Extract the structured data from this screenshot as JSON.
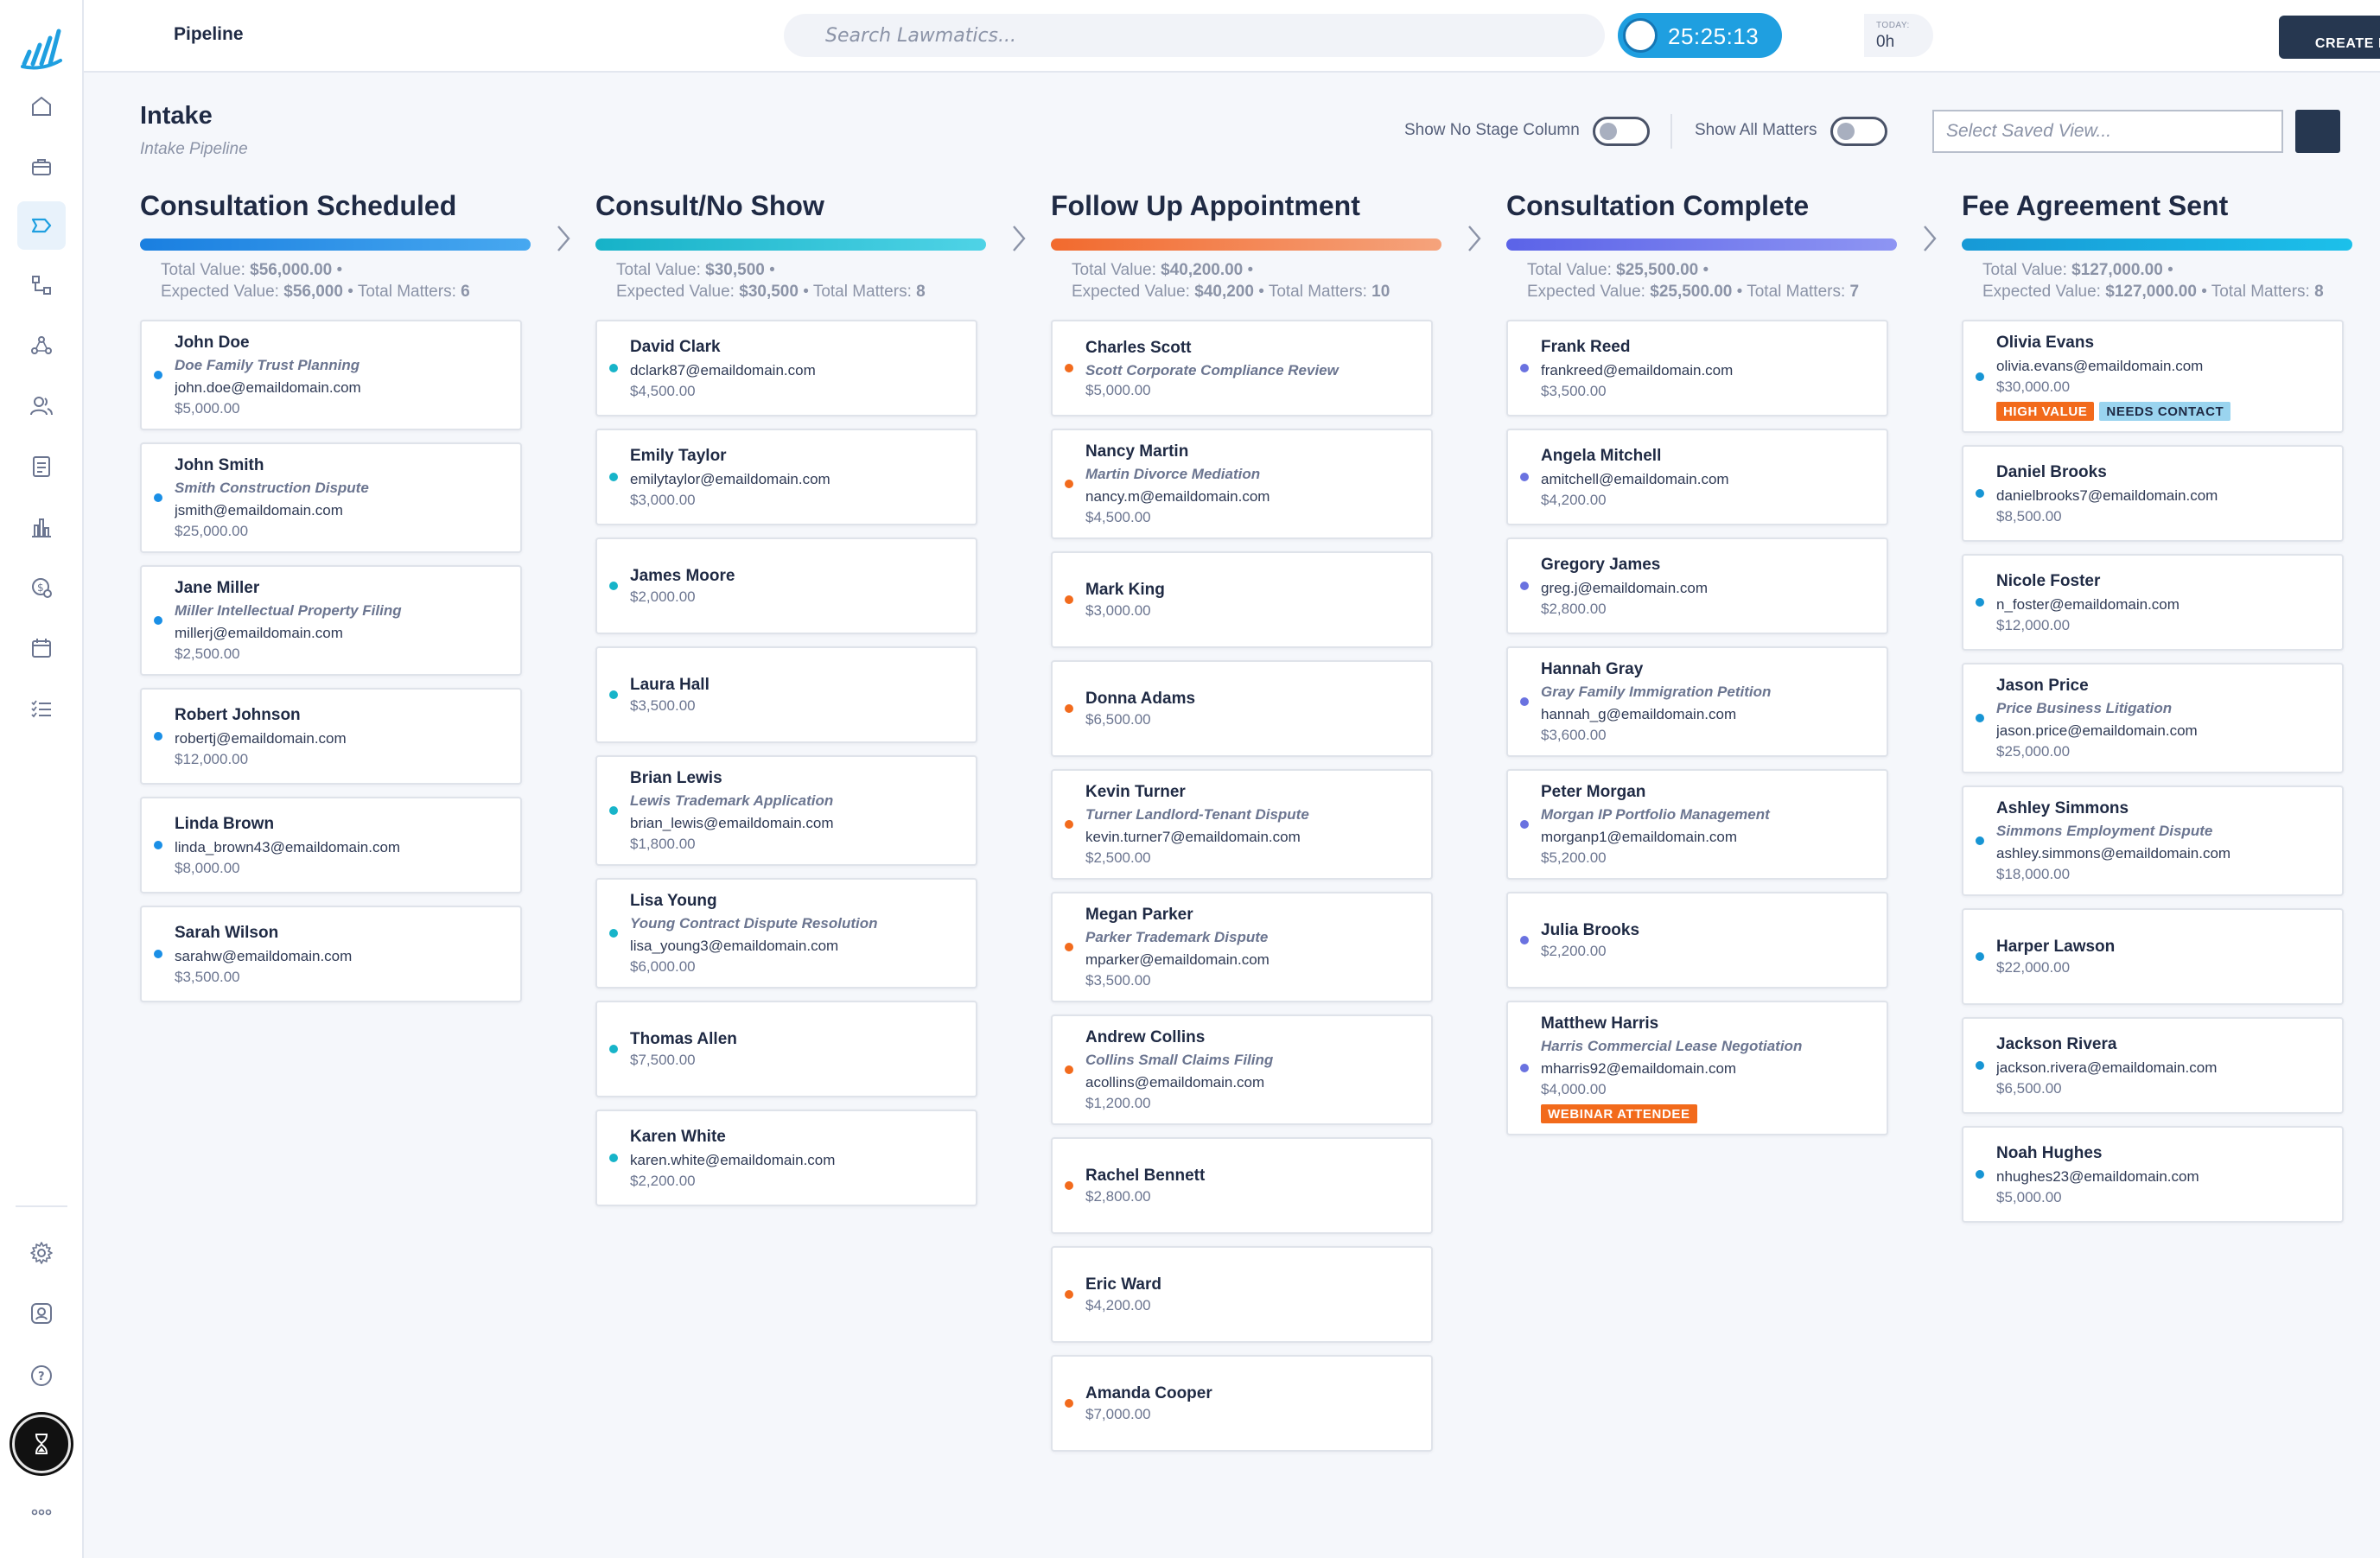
{
  "topbar": {
    "title": "Pipeline",
    "search_placeholder": "Search Lawmatics...",
    "timer": "25:25:13",
    "today_label": "TODAY:",
    "today_value": "0h",
    "create_label": "CREATE NEW"
  },
  "page": {
    "title": "Intake",
    "subtitle": "Intake Pipeline",
    "toggle_no_stage": "Show No Stage Column",
    "toggle_all_matters": "Show All Matters",
    "saved_view_placeholder": "Select Saved View..."
  },
  "labels": {
    "total_value": "Total Value:",
    "expected_value": "Expected Value:",
    "total_matters": "Total Matters:"
  },
  "colors": {
    "accent": "#1f9fe0",
    "dark": "#263750",
    "tag_orange": "#f26a1b",
    "tag_blue": "#9ad4ef"
  },
  "sidebar_icons": [
    "logo-icon",
    "home-icon",
    "briefcase-icon",
    "pipeline-icon",
    "workflow-icon",
    "network-icon",
    "contacts-icon",
    "document-icon",
    "reports-icon",
    "billing-icon",
    "calendar-icon",
    "tasks-icon",
    "settings-icon",
    "chat-icon",
    "help-icon",
    "hourglass-icon",
    "more-icon"
  ],
  "columns": [
    {
      "title": "Consultation Scheduled",
      "gradient": [
        "#1a7fe0",
        "#47a8f0"
      ],
      "dot": "#1a8fe6",
      "total_value": "$56,000.00",
      "expected_value": "$56,000",
      "total_matters": "6",
      "cards": [
        {
          "name": "John Doe",
          "matter": "Doe Family Trust Planning",
          "email": "john.doe@emaildomain.com",
          "value": "$5,000.00"
        },
        {
          "name": "John Smith",
          "matter": "Smith Construction Dispute",
          "email": "jsmith@emaildomain.com",
          "value": "$25,000.00"
        },
        {
          "name": "Jane Miller",
          "matter": "Miller Intellectual Property Filing",
          "email": "millerj@emaildomain.com",
          "value": "$2,500.00"
        },
        {
          "name": "Robert Johnson",
          "matter": "",
          "email": "robertj@emaildomain.com",
          "value": "$12,000.00"
        },
        {
          "name": "Linda Brown",
          "matter": "",
          "email": "linda_brown43@emaildomain.com",
          "value": "$8,000.00"
        },
        {
          "name": "Sarah Wilson",
          "matter": "",
          "email": "sarahw@emaildomain.com",
          "value": "$3,500.00"
        }
      ]
    },
    {
      "title": "Consult/No Show",
      "gradient": [
        "#16b2c8",
        "#4fd3e6"
      ],
      "dot": "#17b4c9",
      "total_value": "$30,500",
      "expected_value": "$30,500",
      "total_matters": "8",
      "cards": [
        {
          "name": "David Clark",
          "matter": "",
          "email": "dclark87@emaildomain.com",
          "value": "$4,500.00"
        },
        {
          "name": "Emily Taylor",
          "matter": "",
          "email": "emilytaylor@emaildomain.com",
          "value": "$3,000.00"
        },
        {
          "name": "James Moore",
          "matter": "",
          "email": "",
          "value": "$2,000.00"
        },
        {
          "name": "Laura Hall",
          "matter": "",
          "email": "",
          "value": "$3,500.00"
        },
        {
          "name": "Brian Lewis",
          "matter": "Lewis Trademark Application",
          "email": "brian_lewis@emaildomain.com",
          "value": "$1,800.00"
        },
        {
          "name": "Lisa Young",
          "matter": "Young Contract Dispute Resolution",
          "email": "lisa_young3@emaildomain.com",
          "value": "$6,000.00"
        },
        {
          "name": "Thomas Allen",
          "matter": "",
          "email": "",
          "value": "$7,500.00"
        },
        {
          "name": "Karen White",
          "matter": "",
          "email": "karen.white@emaildomain.com",
          "value": "$2,200.00"
        }
      ]
    },
    {
      "title": "Follow Up Appointment",
      "gradient": [
        "#f26a2e",
        "#f5a37c"
      ],
      "dot": "#f26b1d",
      "total_value": "$40,200.00",
      "expected_value": "$40,200",
      "total_matters": "10",
      "cards": [
        {
          "name": "Charles Scott",
          "matter": "Scott Corporate Compliance Review",
          "email": "",
          "value": "$5,000.00"
        },
        {
          "name": "Nancy Martin",
          "matter": "Martin Divorce Mediation",
          "email": "nancy.m@emaildomain.com",
          "value": "$4,500.00"
        },
        {
          "name": "Mark King",
          "matter": "",
          "email": "",
          "value": "$3,000.00"
        },
        {
          "name": "Donna Adams",
          "matter": "",
          "email": "",
          "value": "$6,500.00"
        },
        {
          "name": "Kevin Turner",
          "matter": "Turner Landlord-Tenant Dispute",
          "email": "kevin.turner7@emaildomain.com",
          "value": "$2,500.00"
        },
        {
          "name": "Megan Parker",
          "matter": "Parker Trademark Dispute",
          "email": "mparker@emaildomain.com",
          "value": "$3,500.00"
        },
        {
          "name": "Andrew Collins",
          "matter": "Collins Small Claims Filing",
          "email": "acollins@emaildomain.com",
          "value": "$1,200.00"
        },
        {
          "name": "Rachel Bennett",
          "matter": "",
          "email": "",
          "value": "$2,800.00"
        },
        {
          "name": "Eric Ward",
          "matter": "",
          "email": "",
          "value": "$4,200.00"
        },
        {
          "name": "Amanda Cooper",
          "matter": "",
          "email": "",
          "value": "$7,000.00"
        }
      ]
    },
    {
      "title": "Consultation Complete",
      "gradient": [
        "#5b63e8",
        "#8e95f3"
      ],
      "dot": "#6a72e0",
      "total_value": "$25,500.00",
      "expected_value": "$25,500.00",
      "total_matters": "7",
      "cards": [
        {
          "name": "Frank Reed",
          "matter": "",
          "email": "frankreed@emaildomain.com",
          "value": "$3,500.00"
        },
        {
          "name": "Angela Mitchell",
          "matter": "",
          "email": "amitchell@emaildomain.com",
          "value": "$4,200.00"
        },
        {
          "name": "Gregory James",
          "matter": "",
          "email": "greg.j@emaildomain.com",
          "value": "$2,800.00"
        },
        {
          "name": "Hannah Gray",
          "matter": "Gray Family Immigration Petition",
          "email": "hannah_g@emaildomain.com",
          "value": "$3,600.00"
        },
        {
          "name": "Peter Morgan",
          "matter": "Morgan IP Portfolio Management",
          "email": "morganp1@emaildomain.com",
          "value": "$5,200.00"
        },
        {
          "name": "Julia Brooks",
          "matter": "",
          "email": "",
          "value": "$2,200.00"
        },
        {
          "name": "Matthew Harris",
          "matter": "Harris Commercial Lease Negotiation",
          "email": "mharris92@emaildomain.com",
          "value": "$4,000.00",
          "tags": [
            {
              "label": "WEBINAR ATTENDEE",
              "bg": "#f26a1b",
              "fg": "#ffffff"
            }
          ]
        }
      ]
    },
    {
      "title": "Fee Agreement Sent",
      "gradient": [
        "#1799d6",
        "#1cc0ea"
      ],
      "dot": "#1795d4",
      "total_value": "$127,000.00",
      "expected_value": "$127,000.00",
      "total_matters": "8",
      "cards": [
        {
          "name": "Olivia Evans",
          "matter": "",
          "email": "olivia.evans@emaildomain.com",
          "value": "$30,000.00",
          "tags": [
            {
              "label": "HIGH VALUE",
              "bg": "#f26a1b",
              "fg": "#ffffff"
            },
            {
              "label": "NEEDS CONTACT",
              "bg": "#9ad4ef",
              "fg": "#1f2a44"
            }
          ]
        },
        {
          "name": "Daniel Brooks",
          "matter": "",
          "email": "danielbrooks7@emaildomain.com",
          "value": "$8,500.00"
        },
        {
          "name": "Nicole Foster",
          "matter": "",
          "email": "n_foster@emaildomain.com",
          "value": "$12,000.00"
        },
        {
          "name": "Jason Price",
          "matter": "Price Business Litigation",
          "email": "jason.price@emaildomain.com",
          "value": "$25,000.00"
        },
        {
          "name": "Ashley Simmons",
          "matter": "Simmons Employment Dispute",
          "email": "ashley.simmons@emaildomain.com",
          "value": "$18,000.00"
        },
        {
          "name": "Harper Lawson",
          "matter": "",
          "email": "",
          "value": "$22,000.00"
        },
        {
          "name": "Jackson Rivera",
          "matter": "",
          "email": "jackson.rivera@emaildomain.com",
          "value": "$6,500.00"
        },
        {
          "name": "Noah Hughes",
          "matter": "",
          "email": "nhughes23@emaildomain.com",
          "value": "$5,000.00"
        }
      ]
    }
  ]
}
